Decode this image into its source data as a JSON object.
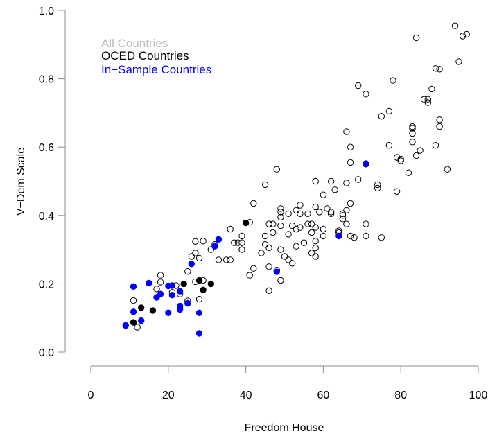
{
  "chart_data": {
    "type": "scatter",
    "xlabel": "Freedom House",
    "ylabel": "V−Dem Scale",
    "xlim": [
      0,
      100
    ],
    "ylim": [
      0,
      1
    ],
    "x_ticks": [
      "0",
      "20",
      "40",
      "60",
      "80",
      "100"
    ],
    "y_ticks": [
      "0.0",
      "0.2",
      "0.4",
      "0.6",
      "0.8",
      "1.0"
    ],
    "grid": false,
    "legend": {
      "placement": "top-left",
      "entries": [
        {
          "label": "All Countries",
          "color": "#bdbdbd"
        },
        {
          "label": "OCED Countries",
          "color": "#000000"
        },
        {
          "label": "In−Sample Countries",
          "color": "#0000ff"
        }
      ]
    },
    "series": [
      {
        "name": "All Countries",
        "marker": "open-circle",
        "color": "#000000",
        "points": [
          [
            11,
            0.151
          ],
          [
            12,
            0.073
          ],
          [
            17,
            0.185
          ],
          [
            18,
            0.225
          ],
          [
            18,
            0.205
          ],
          [
            21,
            0.175
          ],
          [
            22,
            0.195
          ],
          [
            23,
            0.17
          ],
          [
            23,
            0.13
          ],
          [
            25,
            0.15
          ],
          [
            25,
            0.236
          ],
          [
            26,
            0.28
          ],
          [
            27,
            0.206
          ],
          [
            27,
            0.29
          ],
          [
            27,
            0.324
          ],
          [
            28,
            0.275
          ],
          [
            28,
            0.155
          ],
          [
            29,
            0.325
          ],
          [
            29,
            0.21
          ],
          [
            31,
            0.3
          ],
          [
            32,
            0.315
          ],
          [
            33,
            0.27
          ],
          [
            35,
            0.27
          ],
          [
            36,
            0.36
          ],
          [
            36,
            0.27
          ],
          [
            37,
            0.32
          ],
          [
            38,
            0.32
          ],
          [
            39,
            0.34
          ],
          [
            39,
            0.32
          ],
          [
            39,
            0.3
          ],
          [
            41,
            0.38
          ],
          [
            41,
            0.225
          ],
          [
            42,
            0.245
          ],
          [
            42,
            0.435
          ],
          [
            44,
            0.29
          ],
          [
            45,
            0.315
          ],
          [
            45,
            0.34
          ],
          [
            45,
            0.49
          ],
          [
            46,
            0.25
          ],
          [
            46,
            0.375
          ],
          [
            46,
            0.305
          ],
          [
            46,
            0.18
          ],
          [
            47,
            0.375
          ],
          [
            47,
            0.35
          ],
          [
            48,
            0.535
          ],
          [
            48,
            0.24
          ],
          [
            49,
            0.3
          ],
          [
            49,
            0.21
          ],
          [
            49,
            0.42
          ],
          [
            49,
            0.41
          ],
          [
            49,
            0.395
          ],
          [
            49,
            0.37
          ],
          [
            50,
            0.28
          ],
          [
            51,
            0.345
          ],
          [
            51,
            0.27
          ],
          [
            51,
            0.405
          ],
          [
            52,
            0.37
          ],
          [
            52,
            0.26
          ],
          [
            53,
            0.415
          ],
          [
            53,
            0.36
          ],
          [
            53,
            0.31
          ],
          [
            54,
            0.43
          ],
          [
            54,
            0.405
          ],
          [
            54,
            0.365
          ],
          [
            55,
            0.32
          ],
          [
            56,
            0.405
          ],
          [
            56,
            0.375
          ],
          [
            57,
            0.35
          ],
          [
            57,
            0.375
          ],
          [
            57,
            0.29
          ],
          [
            58,
            0.5
          ],
          [
            58,
            0.425
          ],
          [
            58,
            0.365
          ],
          [
            58,
            0.325
          ],
          [
            58,
            0.305
          ],
          [
            58,
            0.28
          ],
          [
            59,
            0.41
          ],
          [
            60,
            0.36
          ],
          [
            60,
            0.34
          ],
          [
            60,
            0.46
          ],
          [
            61,
            0.42
          ],
          [
            62,
            0.5
          ],
          [
            62,
            0.41
          ],
          [
            62,
            0.405
          ],
          [
            63,
            0.475
          ],
          [
            64,
            0.355
          ],
          [
            64,
            0.35
          ],
          [
            65,
            0.405
          ],
          [
            65,
            0.4
          ],
          [
            65,
            0.39
          ],
          [
            66,
            0.645
          ],
          [
            66,
            0.495
          ],
          [
            66,
            0.415
          ],
          [
            66,
            0.375
          ],
          [
            67,
            0.6
          ],
          [
            67,
            0.555
          ],
          [
            67,
            0.435
          ],
          [
            67,
            0.34
          ],
          [
            68,
            0.335
          ],
          [
            69,
            0.78
          ],
          [
            69,
            0.505
          ],
          [
            71,
            0.755
          ],
          [
            71,
            0.55
          ],
          [
            71,
            0.375
          ],
          [
            71,
            0.34
          ],
          [
            74,
            0.49
          ],
          [
            74,
            0.48
          ],
          [
            75,
            0.69
          ],
          [
            75,
            0.335
          ],
          [
            77,
            0.705
          ],
          [
            77,
            0.605
          ],
          [
            78,
            0.795
          ],
          [
            79,
            0.47
          ],
          [
            79,
            0.57
          ],
          [
            80,
            0.56
          ],
          [
            80,
            0.565
          ],
          [
            82,
            0.525
          ],
          [
            83,
            0.66
          ],
          [
            83,
            0.655
          ],
          [
            83,
            0.64
          ],
          [
            83,
            0.615
          ],
          [
            84,
            0.92
          ],
          [
            84,
            0.575
          ],
          [
            85,
            0.59
          ],
          [
            86,
            0.74
          ],
          [
            87,
            0.74
          ],
          [
            87,
            0.73
          ],
          [
            88,
            0.77
          ],
          [
            89,
            0.83
          ],
          [
            89,
            0.605
          ],
          [
            90,
            0.828
          ],
          [
            90,
            0.68
          ],
          [
            90,
            0.66
          ],
          [
            92,
            0.535
          ],
          [
            94,
            0.955
          ],
          [
            95,
            0.85
          ],
          [
            96,
            0.925
          ],
          [
            97,
            0.93
          ]
        ]
      },
      {
        "name": "OCED Countries",
        "marker": "filled-circle",
        "color": "#000000",
        "points": [
          [
            11,
            0.087
          ],
          [
            13,
            0.13
          ],
          [
            16,
            0.122
          ],
          [
            24,
            0.2
          ],
          [
            28,
            0.21
          ],
          [
            29,
            0.182
          ],
          [
            31,
            0.2
          ],
          [
            40,
            0.378
          ]
        ]
      },
      {
        "name": "In−Sample Countries",
        "marker": "filled-circle",
        "color": "#0000ff",
        "points": [
          [
            9,
            0.078
          ],
          [
            11,
            0.192
          ],
          [
            11,
            0.118
          ],
          [
            13,
            0.092
          ],
          [
            15,
            0.202
          ],
          [
            17,
            0.16
          ],
          [
            18,
            0.17
          ],
          [
            20,
            0.194
          ],
          [
            20,
            0.115
          ],
          [
            21,
            0.195
          ],
          [
            21,
            0.167
          ],
          [
            23,
            0.178
          ],
          [
            23,
            0.135
          ],
          [
            23,
            0.125
          ],
          [
            25,
            0.143
          ],
          [
            26,
            0.258
          ],
          [
            28,
            0.115
          ],
          [
            28,
            0.055
          ],
          [
            32,
            0.31
          ],
          [
            33,
            0.33
          ],
          [
            48,
            0.235
          ],
          [
            64,
            0.34
          ],
          [
            71,
            0.552
          ]
        ]
      }
    ]
  }
}
